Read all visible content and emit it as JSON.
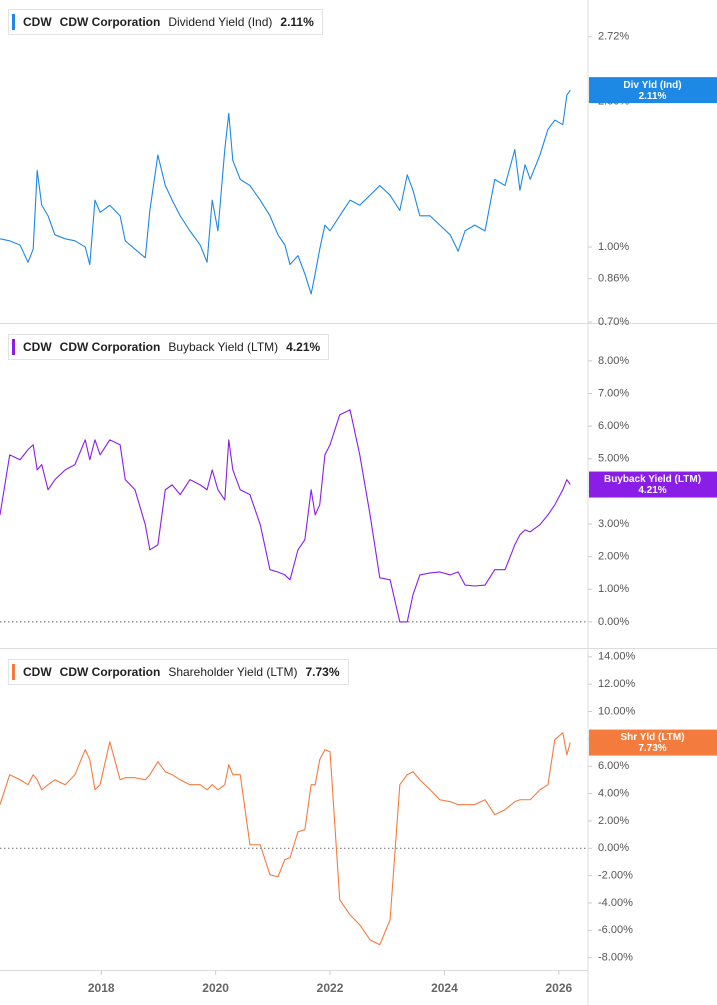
{
  "chart_data": [
    {
      "type": "line",
      "ticker": "CDW",
      "company": "CDW Corporation",
      "log_scale": true,
      "x": [
        2016.23,
        2016.4,
        2016.58,
        2016.72,
        2016.81,
        2016.88,
        2016.96,
        2017.07,
        2017.19,
        2017.37,
        2017.54,
        2017.72,
        2017.8,
        2017.89,
        2017.98,
        2018.15,
        2018.33,
        2018.42,
        2018.59,
        2018.77,
        2018.85,
        2018.99,
        2019.12,
        2019.24,
        2019.38,
        2019.55,
        2019.73,
        2019.85,
        2019.94,
        2020.04,
        2020.16,
        2020.23,
        2020.3,
        2020.43,
        2020.6,
        2020.78,
        2020.95,
        2021.09,
        2021.21,
        2021.3,
        2021.44,
        2021.56,
        2021.67,
        2021.74,
        2021.82,
        2021.91,
        2022.0,
        2022.17,
        2022.35,
        2022.52,
        2022.7,
        2022.87,
        2023.05,
        2023.22,
        2023.35,
        2023.45,
        2023.57,
        2023.75,
        2023.92,
        2024.1,
        2024.24,
        2024.36,
        2024.53,
        2024.71,
        2024.88,
        2025.06,
        2025.23,
        2025.32,
        2025.41,
        2025.5,
        2025.67,
        2025.81,
        2025.93,
        2026.07,
        2026.14,
        2026.2
      ],
      "series": [
        {
          "name": "Dividend Yield (Ind)",
          "color": "#1e88e5",
          "values": [
            1.04,
            1.03,
            1.01,
            0.93,
            0.99,
            1.44,
            1.22,
            1.16,
            1.06,
            1.04,
            1.03,
            1.0,
            0.92,
            1.25,
            1.18,
            1.22,
            1.16,
            1.03,
            0.99,
            0.95,
            1.19,
            1.55,
            1.34,
            1.25,
            1.16,
            1.08,
            1.01,
            0.93,
            1.25,
            1.08,
            1.59,
            1.89,
            1.51,
            1.38,
            1.34,
            1.25,
            1.16,
            1.06,
            1.01,
            0.92,
            0.96,
            0.88,
            0.8,
            0.88,
            0.99,
            1.11,
            1.08,
            1.16,
            1.25,
            1.22,
            1.28,
            1.34,
            1.28,
            1.19,
            1.41,
            1.31,
            1.16,
            1.16,
            1.11,
            1.06,
            0.98,
            1.08,
            1.11,
            1.08,
            1.38,
            1.34,
            1.59,
            1.31,
            1.48,
            1.38,
            1.55,
            1.75,
            1.83,
            1.79,
            2.06,
            2.11
          ]
        }
      ],
      "current": {
        "value": 2.11,
        "label": "2.11%"
      },
      "badge_label": "Div Yld (Ind)",
      "xlim": [
        2016.23,
        2026.51
      ],
      "ylim": [
        0.7,
        3.24
      ],
      "yticks": [
        {
          "value": 0.7,
          "label": "0.70%"
        },
        {
          "value": 0.86,
          "label": "0.86%"
        },
        {
          "value": 1,
          "label": "1.00%"
        },
        {
          "value": 2,
          "label": "2.00%"
        },
        {
          "value": 2.72,
          "label": "2.72%"
        }
      ]
    },
    {
      "type": "line",
      "ticker": "CDW",
      "company": "CDW Corporation",
      "zero_line": true,
      "x": [
        2016.23,
        2016.4,
        2016.58,
        2016.72,
        2016.81,
        2016.88,
        2016.96,
        2017.07,
        2017.19,
        2017.37,
        2017.54,
        2017.72,
        2017.8,
        2017.89,
        2017.98,
        2018.15,
        2018.33,
        2018.42,
        2018.59,
        2018.77,
        2018.85,
        2018.99,
        2019.12,
        2019.24,
        2019.38,
        2019.55,
        2019.73,
        2019.85,
        2019.94,
        2020.04,
        2020.16,
        2020.23,
        2020.3,
        2020.43,
        2020.6,
        2020.78,
        2020.95,
        2021.09,
        2021.21,
        2021.3,
        2021.44,
        2021.56,
        2021.67,
        2021.74,
        2021.82,
        2021.91,
        2022.0,
        2022.17,
        2022.35,
        2022.52,
        2022.7,
        2022.87,
        2023.05,
        2023.22,
        2023.35,
        2023.45,
        2023.57,
        2023.75,
        2023.92,
        2024.1,
        2024.24,
        2024.36,
        2024.53,
        2024.71,
        2024.88,
        2025.06,
        2025.23,
        2025.32,
        2025.41,
        2025.5,
        2025.67,
        2025.81,
        2025.93,
        2026.07,
        2026.14,
        2026.2
      ],
      "series": [
        {
          "name": "Buyback Yield (LTM)",
          "color": "#8a1ee6",
          "values": [
            3.28,
            5.12,
            4.97,
            5.28,
            5.43,
            4.66,
            4.82,
            4.05,
            4.36,
            4.66,
            4.82,
            5.58,
            4.97,
            5.58,
            5.12,
            5.58,
            5.43,
            4.36,
            4.05,
            2.98,
            2.21,
            2.36,
            4.05,
            4.2,
            3.9,
            4.36,
            4.2,
            4.05,
            4.66,
            4.05,
            3.74,
            5.58,
            4.66,
            4.05,
            3.9,
            2.98,
            1.6,
            1.53,
            1.44,
            1.29,
            2.21,
            2.52,
            4.05,
            3.28,
            3.59,
            5.12,
            5.43,
            6.35,
            6.5,
            5.12,
            3.28,
            1.35,
            1.29,
            0,
            0,
            0.83,
            1.44,
            1.5,
            1.53,
            1.44,
            1.53,
            1.13,
            1.1,
            1.13,
            1.6,
            1.6,
            2.36,
            2.67,
            2.82,
            2.76,
            2.98,
            3.28,
            3.59,
            4.05,
            4.36,
            4.21
          ]
        }
      ],
      "current": {
        "value": 4.21,
        "label": "4.21%"
      },
      "badge_label": "Buyback Yield (LTM)",
      "xlim": [
        2016.23,
        2026.51
      ],
      "ylim": [
        -0.8,
        9.1
      ],
      "yticks": [
        {
          "value": 0,
          "label": "0.00%"
        },
        {
          "value": 1,
          "label": "1.00%"
        },
        {
          "value": 2,
          "label": "2.00%"
        },
        {
          "value": 3,
          "label": "3.00%"
        },
        {
          "value": 4,
          "label": "4.00%"
        },
        {
          "value": 5,
          "label": "5.00%"
        },
        {
          "value": 6,
          "label": "6.00%"
        },
        {
          "value": 7,
          "label": "7.00%"
        },
        {
          "value": 8,
          "label": "8.00%"
        }
      ]
    },
    {
      "type": "line",
      "ticker": "CDW",
      "company": "CDW Corporation",
      "zero_line": true,
      "x": [
        2016.23,
        2016.4,
        2016.58,
        2016.72,
        2016.81,
        2016.88,
        2016.96,
        2017.07,
        2017.19,
        2017.37,
        2017.54,
        2017.72,
        2017.8,
        2017.89,
        2017.98,
        2018.15,
        2018.33,
        2018.42,
        2018.59,
        2018.77,
        2018.85,
        2018.99,
        2019.12,
        2019.24,
        2019.38,
        2019.55,
        2019.73,
        2019.85,
        2019.94,
        2020.04,
        2020.16,
        2020.23,
        2020.3,
        2020.43,
        2020.6,
        2020.78,
        2020.95,
        2021.09,
        2021.21,
        2021.3,
        2021.44,
        2021.56,
        2021.67,
        2021.74,
        2021.82,
        2021.91,
        2022.0,
        2022.17,
        2022.35,
        2022.52,
        2022.7,
        2022.87,
        2023.05,
        2023.22,
        2023.35,
        2023.45,
        2023.57,
        2023.75,
        2023.92,
        2024.1,
        2024.24,
        2024.36,
        2024.53,
        2024.71,
        2024.88,
        2025.06,
        2025.23,
        2025.32,
        2025.41,
        2025.5,
        2025.67,
        2025.81,
        2025.93,
        2026.07,
        2026.14,
        2026.2
      ],
      "series": [
        {
          "name": "Shareholder Yield (LTM)",
          "color": "#f47b3e",
          "values": [
            3.19,
            5.38,
            5.01,
            4.65,
            5.38,
            5.01,
            4.28,
            4.65,
            5.01,
            4.65,
            5.38,
            7.21,
            6.48,
            4.28,
            4.65,
            7.79,
            5.01,
            5.16,
            5.16,
            5.01,
            5.38,
            6.33,
            5.6,
            5.38,
            5.01,
            4.65,
            4.65,
            4.28,
            4.65,
            4.28,
            4.65,
            6.11,
            5.38,
            5.38,
            0.26,
            0.26,
            -1.94,
            -2.08,
            -0.83,
            -0.69,
            1.21,
            1.36,
            4.65,
            4.65,
            6.48,
            7.21,
            7.06,
            -3.77,
            -4.87,
            -5.6,
            -6.7,
            -7.05,
            -5.23,
            4.65,
            5.38,
            5.6,
            5.01,
            4.28,
            3.55,
            3.41,
            3.19,
            3.19,
            3.19,
            3.55,
            2.46,
            2.82,
            3.41,
            3.55,
            3.55,
            3.55,
            4.28,
            4.65,
            7.94,
            8.45,
            6.84,
            7.73
          ]
        }
      ],
      "current": {
        "value": 7.73,
        "label": "7.73%"
      },
      "badge_label": "Shr Yld (LTM)",
      "xlim": [
        2016.23,
        2026.51
      ],
      "ylim": [
        -8.9,
        14.5
      ],
      "yticks": [
        {
          "value": -8,
          "label": "-8.00%"
        },
        {
          "value": -6,
          "label": "-6.00%"
        },
        {
          "value": -4,
          "label": "-4.00%"
        },
        {
          "value": -2,
          "label": "-2.00%"
        },
        {
          "value": 0,
          "label": "0.00%"
        },
        {
          "value": 2,
          "label": "2.00%"
        },
        {
          "value": 4,
          "label": "4.00%"
        },
        {
          "value": 6,
          "label": "6.00%"
        },
        {
          "value": 8,
          "label": "8.00%"
        },
        {
          "value": 10,
          "label": "10.00%"
        },
        {
          "value": 12,
          "label": "12.00%"
        },
        {
          "value": 14,
          "label": "14.00%"
        }
      ],
      "xticks": [
        2018,
        2020,
        2022,
        2024,
        2026
      ]
    }
  ]
}
